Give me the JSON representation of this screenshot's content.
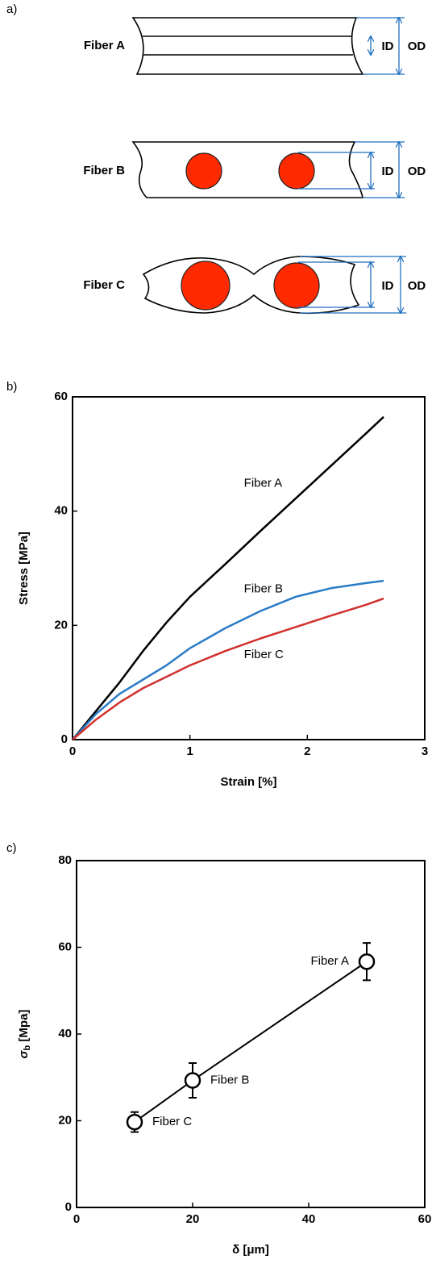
{
  "diagram": {
    "label": "a)",
    "fibers": [
      {
        "name": "Fiber A",
        "id": "ID",
        "od": "OD"
      },
      {
        "name": "Fiber B",
        "id": "ID",
        "od": "OD"
      },
      {
        "name": "Fiber C",
        "id": "ID",
        "od": "OD"
      }
    ]
  },
  "chart_data": [
    {
      "type": "line",
      "label": "b)",
      "xlabel": "Strain [%]",
      "ylabel": "Stress [MPa]",
      "x": [
        0,
        0.2,
        0.4,
        0.6,
        0.8,
        1.0,
        1.3,
        1.6,
        1.9,
        2.2,
        2.5,
        2.65
      ],
      "series": [
        {
          "name": "Fiber A",
          "color": "#000000",
          "values": [
            0,
            5,
            10,
            15.5,
            20.5,
            25,
            30.7,
            36.5,
            42.2,
            47.9,
            53.6,
            56.5
          ]
        },
        {
          "name": "Fiber B",
          "color": "#2a7bc6",
          "values": [
            0,
            4.5,
            8,
            10.5,
            13,
            16,
            19.5,
            22.5,
            25,
            26.5,
            27.4,
            27.8
          ]
        },
        {
          "name": "Fiber C",
          "color": "#d0312d",
          "values": [
            0,
            3.5,
            6.5,
            9,
            11,
            13,
            15.5,
            17.7,
            19.7,
            21.7,
            23.6,
            24.7
          ]
        }
      ],
      "xlim": [
        0,
        3
      ],
      "xticks": [
        0,
        1,
        2,
        3
      ],
      "ylim": [
        0,
        60
      ],
      "yticks": [
        0,
        20,
        40,
        60
      ]
    },
    {
      "type": "scatter",
      "label": "c)",
      "xlabel": "δ [μm]",
      "ylabel": {
        "symbol": "σ",
        "subscript": "b",
        "unit": " [Mpa]"
      },
      "x": [
        10,
        20,
        50
      ],
      "values": [
        19.7,
        29.3,
        56.7
      ],
      "errors": [
        2.3,
        4.0,
        4.3
      ],
      "point_labels": [
        "Fiber C",
        "Fiber B",
        "Fiber A"
      ],
      "color": "#000000",
      "xlim": [
        0,
        60
      ],
      "xticks": [
        0,
        20,
        40,
        60
      ],
      "ylim": [
        0,
        80
      ],
      "yticks": [
        0,
        20,
        40,
        60,
        80
      ]
    }
  ]
}
